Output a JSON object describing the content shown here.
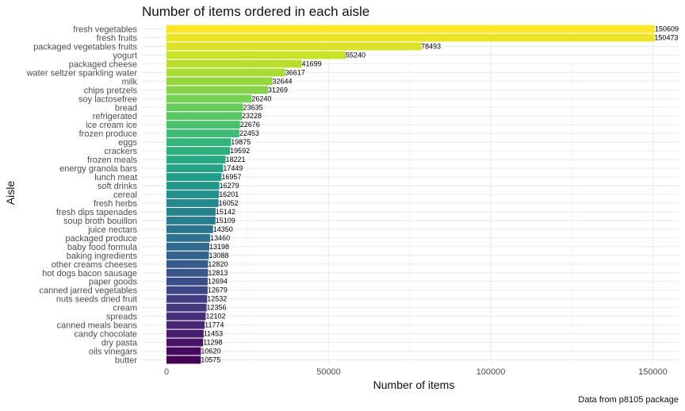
{
  "chart_data": {
    "type": "bar",
    "orientation": "horizontal",
    "title": "Number of items ordered in each aisle",
    "xlabel": "Number of items",
    "ylabel": "Aisle",
    "caption": "Data from p8105 package",
    "xlim": [
      0,
      155000
    ],
    "xticks": [
      0,
      50000,
      100000,
      150000
    ],
    "grid": true,
    "legend": "none",
    "color_scale": "viridis",
    "categories": [
      "fresh vegetables",
      "fresh fruits",
      "packaged vegetables fruits",
      "yogurt",
      "packaged cheese",
      "water seltzer sparkling water",
      "milk",
      "chips pretzels",
      "soy lactosefree",
      "bread",
      "refrigerated",
      "ice cream ice",
      "frozen produce",
      "eggs",
      "crackers",
      "frozen meals",
      "energy granola bars",
      "lunch meat",
      "soft drinks",
      "cereal",
      "fresh herbs",
      "fresh dips tapenades",
      "soup broth bouillon",
      "juice nectars",
      "packaged produce",
      "baby food formula",
      "baking ingredients",
      "other creams cheeses",
      "hot dogs bacon sausage",
      "paper goods",
      "canned jarred vegetables",
      "nuts seeds dried fruit",
      "cream",
      "spreads",
      "canned meals beans",
      "candy chocolate",
      "dry pasta",
      "oils vinegars",
      "butter"
    ],
    "values": [
      150609,
      150473,
      78493,
      55240,
      41699,
      36617,
      32644,
      31269,
      26240,
      23635,
      23228,
      22676,
      22453,
      19875,
      19592,
      18221,
      17449,
      16957,
      16279,
      16201,
      16052,
      15142,
      15109,
      14350,
      13460,
      13198,
      13088,
      12820,
      12813,
      12694,
      12679,
      12532,
      12356,
      12102,
      11774,
      11453,
      11298,
      10620,
      10575
    ]
  }
}
